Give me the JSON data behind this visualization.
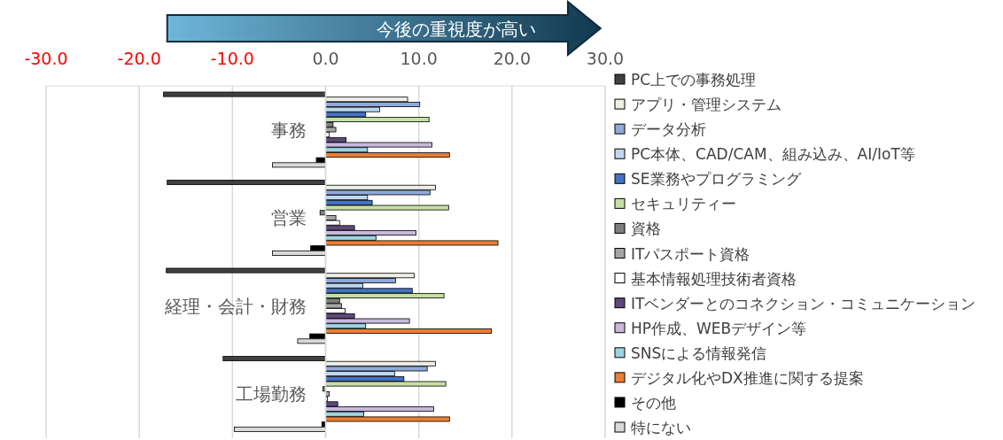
{
  "chart_data": {
    "type": "bar",
    "orientation": "horizontal",
    "annotations": [
      "今後の重視度が高い"
    ],
    "categories": [
      "事務",
      "営業",
      "経理・会計・財務",
      "工場勤務"
    ],
    "xlim": [
      -30,
      30
    ],
    "xticks": [
      {
        "value": -30,
        "label": "-30.0"
      },
      {
        "value": -20,
        "label": "-20.0"
      },
      {
        "value": -10,
        "label": "-10.0"
      },
      {
        "value": 0,
        "label": "0.0"
      },
      {
        "value": 10,
        "label": "10.0"
      },
      {
        "value": 20,
        "label": "20.0"
      },
      {
        "value": 30,
        "label": "30.0"
      }
    ],
    "grid": "x",
    "legend": "right",
    "series": [
      {
        "name": "PC上での事務処理",
        "color": "#404040",
        "values": [
          -17.4,
          -17.0,
          -17.1,
          -11.0
        ]
      },
      {
        "name": "アプリ・管理システム",
        "color": "#eeeee6",
        "values": [
          8.8,
          11.8,
          9.5,
          11.8
        ]
      },
      {
        "name": "データ分析",
        "color": "#8eaadb",
        "values": [
          10.1,
          11.2,
          7.5,
          10.9
        ]
      },
      {
        "name": "PC本体、CAD/CAM、組み込み、AI/IoT等",
        "color": "#bdd7ee",
        "values": [
          5.8,
          4.5,
          4.0,
          7.4
        ]
      },
      {
        "name": "SE業務やプログラミング",
        "color": "#4472c4",
        "values": [
          4.3,
          5.0,
          9.3,
          8.4
        ]
      },
      {
        "name": "セキュリティー",
        "color": "#c5e0a5",
        "values": [
          11.1,
          13.2,
          12.7,
          12.9
        ]
      },
      {
        "name": "資格",
        "color": "#7f7f7f",
        "values": [
          0.8,
          -0.6,
          1.5,
          -0.3
        ]
      },
      {
        "name": "ITパスポート資格",
        "color": "#a6a6a6",
        "values": [
          1.1,
          1.1,
          1.7,
          0.4
        ]
      },
      {
        "name": "基本情報処理技術者資格",
        "color": "#ffffff",
        "values": [
          0.4,
          1.5,
          2.1,
          0.2
        ]
      },
      {
        "name": "ITベンダーとのコネクション・コミュニケーション",
        "color": "#5b4a7a",
        "values": [
          2.2,
          3.1,
          3.1,
          1.3
        ]
      },
      {
        "name": "HP作成、WEBデザイン等",
        "color": "#c9b8dc",
        "values": [
          11.4,
          9.7,
          9.0,
          11.6
        ]
      },
      {
        "name": "SNSによる情報発信",
        "color": "#9dd3e3",
        "values": [
          4.5,
          5.4,
          4.3,
          4.1
        ]
      },
      {
        "name": "デジタル化やDX推進に関する提案",
        "color": "#ed7d31",
        "values": [
          13.3,
          18.5,
          17.8,
          13.3
        ]
      },
      {
        "name": "その他",
        "color": "#000000",
        "values": [
          -1.0,
          -1.6,
          -1.7,
          -0.4
        ]
      },
      {
        "name": "特にない",
        "color": "#d9d9d9",
        "values": [
          -5.7,
          -5.7,
          -3.0,
          -9.8
        ]
      }
    ]
  }
}
